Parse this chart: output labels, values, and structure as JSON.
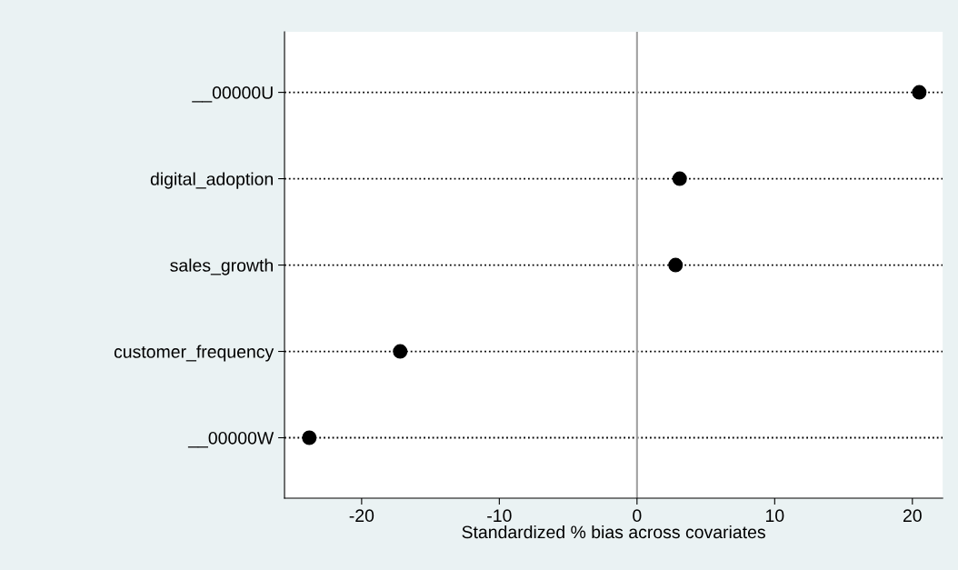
{
  "chart_data": {
    "type": "scatter",
    "orientation": "horizontal",
    "xlabel": "Standardized % bias across covariates",
    "categories": [
      "__00000U",
      "digital_adoption",
      "sales_growth",
      "customer_frequency",
      "__00000W"
    ],
    "series": [
      {
        "color": "#000000",
        "values": [
          20.5,
          3.1,
          2.8,
          -17.2,
          -23.8
        ]
      }
    ],
    "xlim": [
      -25.6,
      22.2
    ],
    "xticks": [
      -20,
      -10,
      0,
      10,
      20
    ],
    "ref_lines": [
      {
        "axis": "x",
        "value": 0,
        "color": "#a0a0a0"
      }
    ],
    "grid": "y",
    "line_style": "dotted",
    "marker": "circle"
  }
}
